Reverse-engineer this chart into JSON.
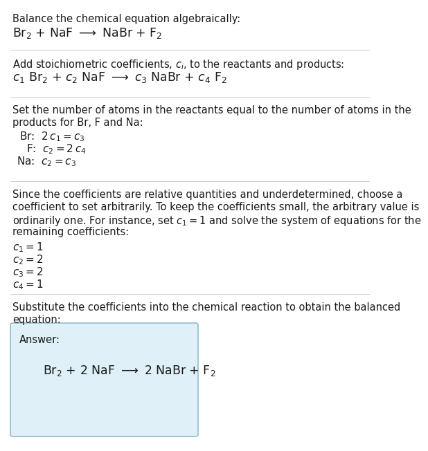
{
  "bg_color": "#ffffff",
  "text_color": "#1a1a1a",
  "answer_box_bg": "#dff0f8",
  "answer_box_border": "#90bdd0",
  "divider_color": "#bbbbbb",
  "section1": {
    "line1": "Balance the chemical equation algebraically:",
    "line2": "Br$_2$ + NaF $\\longrightarrow$ NaBr + F$_2$"
  },
  "section2": {
    "line1": "Add stoichiometric coefficients, $c_i$, to the reactants and products:",
    "line2": "$c_1$ Br$_2$ + $c_2$ NaF $\\longrightarrow$ $c_3$ NaBr + $c_4$ F$_2$"
  },
  "section3": {
    "line1": "Set the number of atoms in the reactants equal to the number of atoms in the",
    "line2": "products for Br, F and Na:",
    "eq1": "Br:  $2\\,c_1 = c_3$",
    "eq2": "F:  $c_2 = 2\\,c_4$",
    "eq3": "Na:  $c_2 = c_3$"
  },
  "section4": {
    "line1": "Since the coefficients are relative quantities and underdetermined, choose a",
    "line2": "coefficient to set arbitrarily. To keep the coefficients small, the arbitrary value is",
    "line3": "ordinarily one. For instance, set $c_1 = 1$ and solve the system of equations for the",
    "line4": "remaining coefficients:",
    "c1": "$c_1 = 1$",
    "c2": "$c_2 = 2$",
    "c3": "$c_3 = 2$",
    "c4": "$c_4 = 1$"
  },
  "section5": {
    "line1": "Substitute the coefficients into the chemical reaction to obtain the balanced",
    "line2": "equation:",
    "answer_label": "Answer:",
    "answer_eq": "Br$_2$ + 2 NaF $\\longrightarrow$ 2 NaBr + F$_2$"
  }
}
